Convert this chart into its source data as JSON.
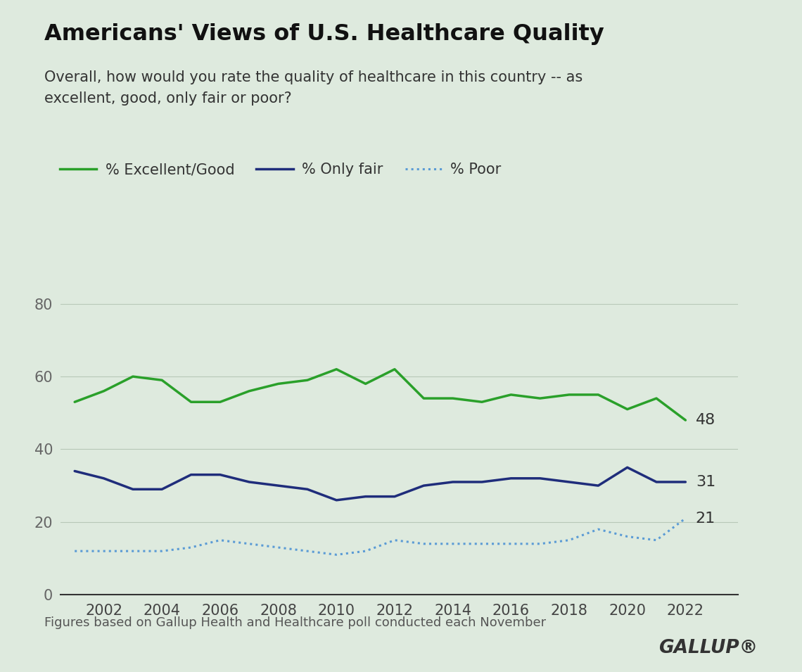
{
  "title": "Americans' Views of U.S. Healthcare Quality",
  "subtitle": "Overall, how would you rate the quality of healthcare in this country -- as\nexcellent, good, only fair or poor?",
  "footnote": "Figures based on Gallup Health and Healthcare poll conducted each November",
  "gallup_text": "GALLUP®",
  "background_color": "#deeade",
  "years": [
    2001,
    2002,
    2003,
    2004,
    2005,
    2006,
    2007,
    2008,
    2009,
    2010,
    2011,
    2012,
    2013,
    2014,
    2015,
    2016,
    2017,
    2018,
    2019,
    2020,
    2021,
    2022
  ],
  "excellent_good": [
    53,
    56,
    60,
    59,
    53,
    53,
    56,
    58,
    59,
    62,
    58,
    62,
    54,
    54,
    53,
    55,
    54,
    55,
    55,
    51,
    54,
    48
  ],
  "only_fair": [
    34,
    32,
    29,
    29,
    33,
    33,
    31,
    30,
    29,
    26,
    27,
    27,
    30,
    31,
    31,
    32,
    32,
    31,
    30,
    35,
    31,
    31
  ],
  "poor": [
    12,
    12,
    12,
    12,
    13,
    15,
    14,
    13,
    12,
    11,
    12,
    15,
    14,
    14,
    14,
    14,
    14,
    15,
    18,
    16,
    15,
    21
  ],
  "line_colors": {
    "excellent_good": "#2aa02a",
    "only_fair": "#1f2d7b",
    "poor": "#5b9bd5"
  },
  "end_labels": {
    "excellent_good": 48,
    "only_fair": 31,
    "poor": 21
  },
  "ylim": [
    0,
    85
  ],
  "yticks": [
    0,
    20,
    40,
    60,
    80
  ],
  "xtick_start": 2002,
  "xtick_end": 2022,
  "xtick_step": 2,
  "legend_labels": [
    "% Excellent/Good",
    "% Only fair",
    "% Poor"
  ]
}
